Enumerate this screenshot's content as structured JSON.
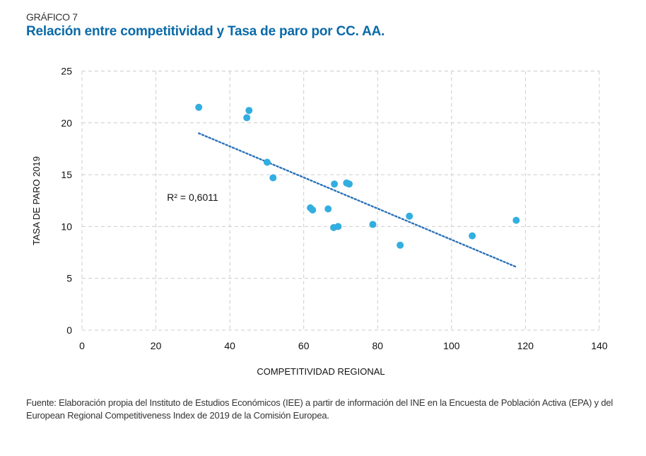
{
  "header": {
    "kicker": "GRÁFICO 7",
    "title": "Relación entre competitividad y Tasa de paro por CC. AA."
  },
  "source": {
    "line1": "Fuente: Elaboración propia del Instituto de Estudios Económicos (IEE) a partir de información del INE en la Encuesta de Población Activa (EPA) y del",
    "line2": "European Regional Competitiveness Index de 2019 de la Comisión Europea."
  },
  "colors": {
    "title": "#0a6aa8",
    "points": "#33aee0",
    "trendline": "#2a72b8",
    "grid": "#cccccc"
  },
  "chart_data": {
    "type": "scatter",
    "title": "Relación entre competitividad y Tasa de paro por CC. AA.",
    "xlabel": "COMPETITIVIDAD REGIONAL",
    "ylabel": "TASA DE PARO 2019",
    "xlim": [
      0,
      140
    ],
    "ylim": [
      0,
      25
    ],
    "xticks": [
      0,
      20,
      40,
      60,
      80,
      100,
      120,
      140
    ],
    "yticks": [
      0,
      5,
      10,
      15,
      20,
      25
    ],
    "grid": true,
    "legend": "none",
    "points": [
      {
        "x": 31.6,
        "y": 21.5
      },
      {
        "x": 45.2,
        "y": 21.2
      },
      {
        "x": 44.6,
        "y": 20.5
      },
      {
        "x": 50.1,
        "y": 16.2
      },
      {
        "x": 51.7,
        "y": 14.7
      },
      {
        "x": 68.3,
        "y": 14.1
      },
      {
        "x": 71.6,
        "y": 14.2
      },
      {
        "x": 72.3,
        "y": 14.1
      },
      {
        "x": 61.8,
        "y": 11.8
      },
      {
        "x": 62.4,
        "y": 11.6
      },
      {
        "x": 66.6,
        "y": 11.7
      },
      {
        "x": 68.1,
        "y": 9.9
      },
      {
        "x": 69.3,
        "y": 10.0
      },
      {
        "x": 78.7,
        "y": 10.2
      },
      {
        "x": 88.6,
        "y": 11.0
      },
      {
        "x": 86.1,
        "y": 8.2
      },
      {
        "x": 105.6,
        "y": 9.1
      },
      {
        "x": 117.5,
        "y": 10.6
      }
    ],
    "trendline": {
      "type": "linear",
      "x": [
        31.6,
        117.5
      ],
      "y": [
        19.0,
        6.1
      ]
    },
    "annotations": [
      {
        "text": "R² = 0,6011",
        "x": 23,
        "y": 12.5
      }
    ]
  }
}
